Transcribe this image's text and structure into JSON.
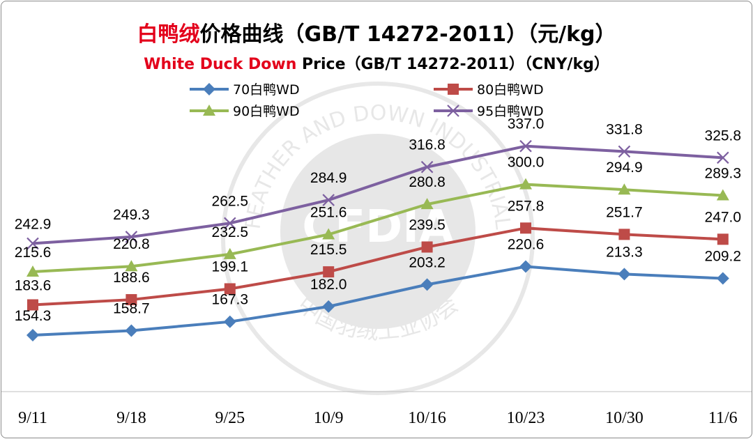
{
  "title": {
    "cn_red": "白鸭绒",
    "cn_rest": "价格曲线（GB/T 14272-2011）（元/kg）",
    "en_red": "White Duck Down",
    "en_rest": " Price（GB/T 14272-2011）（CNY/kg）"
  },
  "watermark": {
    "text_top": "FEATHER AND DOWN INDUSTRIAL",
    "text_bottom": "中国羽绒工业协会",
    "logo": "CFDIA"
  },
  "chart_data": {
    "type": "line",
    "categories": [
      "9/11",
      "9/18",
      "9/25",
      "10/9",
      "10/16",
      "10/23",
      "10/30",
      "11/6"
    ],
    "series": [
      {
        "name": "70白鸭WD",
        "color": "#4a7ebb",
        "marker": "diamond",
        "values": [
          154.3,
          158.7,
          167.3,
          182.0,
          203.2,
          220.6,
          213.3,
          209.2
        ]
      },
      {
        "name": "80白鸭WD",
        "color": "#be4b48",
        "marker": "square",
        "values": [
          183.6,
          188.6,
          199.1,
          215.5,
          239.5,
          257.8,
          251.7,
          247.0
        ]
      },
      {
        "name": "90白鸭WD",
        "color": "#98b954",
        "marker": "triangle",
        "values": [
          215.6,
          220.8,
          232.5,
          251.6,
          280.8,
          300.0,
          294.9,
          289.3
        ]
      },
      {
        "name": "95白鸭WD",
        "color": "#7d60a0",
        "marker": "x",
        "values": [
          242.9,
          249.3,
          262.5,
          284.9,
          316.8,
          337.0,
          331.8,
          325.8
        ]
      }
    ],
    "data_labels": true,
    "grid": false,
    "legend_placement": "top"
  }
}
